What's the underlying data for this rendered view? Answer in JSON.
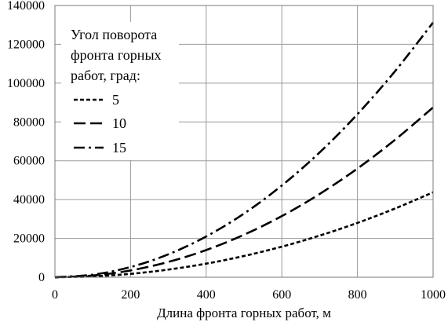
{
  "chart_data": {
    "type": "line",
    "xlabel": "Длина фронта горных работ, м",
    "ylabel": "",
    "xlim": [
      0,
      1000
    ],
    "ylim": [
      0,
      140000
    ],
    "x_ticks": [
      0,
      200,
      400,
      600,
      800,
      1000
    ],
    "y_ticks": [
      0,
      20000,
      40000,
      60000,
      80000,
      100000,
      120000,
      140000
    ],
    "grid": true,
    "legend_title_lines": [
      "Угол поворота",
      "фронта горных",
      "работ, град:"
    ],
    "legend_position": "top-left",
    "series": [
      {
        "name": "5",
        "dash": "short-dash",
        "x": [
          0,
          100,
          200,
          300,
          400,
          500,
          600,
          700,
          800,
          900,
          1000
        ],
        "y": [
          0,
          440,
          1750,
          3950,
          7000,
          10950,
          15750,
          21450,
          28000,
          35450,
          43750
        ]
      },
      {
        "name": "10",
        "dash": "long-dash",
        "x": [
          0,
          100,
          200,
          300,
          400,
          500,
          600,
          700,
          800,
          900,
          1000
        ],
        "y": [
          0,
          880,
          3500,
          7900,
          14000,
          21900,
          31500,
          42900,
          56000,
          70900,
          87500
        ]
      },
      {
        "name": "15",
        "dash": "dash-dot",
        "x": [
          0,
          100,
          200,
          300,
          400,
          500,
          600,
          700,
          800,
          900,
          1000
        ],
        "y": [
          0,
          1310,
          5250,
          11800,
          21000,
          32800,
          47250,
          64300,
          84000,
          106300,
          131250
        ]
      }
    ]
  }
}
